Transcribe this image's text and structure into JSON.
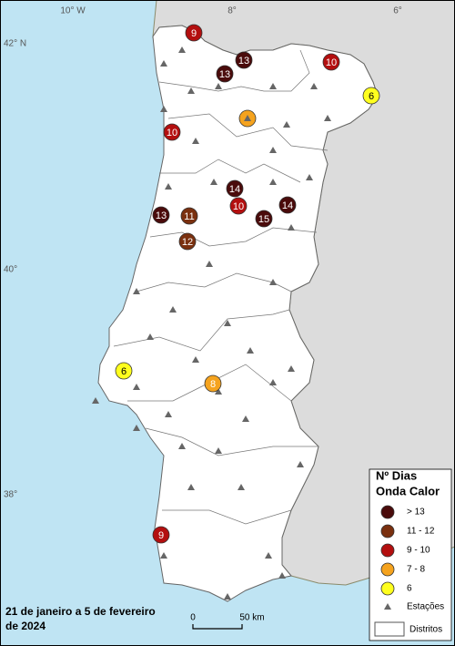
{
  "graticule": {
    "lon": [
      "10° W",
      "8°",
      "6°"
    ],
    "lat": [
      "42° N",
      "40°",
      "38°"
    ]
  },
  "markers": [
    {
      "value": 9,
      "color": "#b30f0f",
      "label_color": "#ffffff"
    },
    {
      "value": 13,
      "color": "#4a0b0b",
      "label_color": "#ffffff"
    },
    {
      "value": 13,
      "color": "#4a0b0b",
      "label_color": "#ffffff"
    },
    {
      "value": 10,
      "color": "#b30f0f",
      "label_color": "#ffffff"
    },
    {
      "value": 6,
      "color": "#ffff1e",
      "label_color": "#000000"
    },
    {
      "color": "#f5a31e"
    },
    {
      "value": 10,
      "color": "#b30f0f",
      "label_color": "#ffffff"
    },
    {
      "value": 14,
      "color": "#4a0b0b",
      "label_color": "#ffffff"
    },
    {
      "value": 10,
      "color": "#b30f0f",
      "label_color": "#ffffff"
    },
    {
      "value": 14,
      "color": "#4a0b0b",
      "label_color": "#ffffff"
    },
    {
      "value": 13,
      "color": "#4a0b0b",
      "label_color": "#ffffff"
    },
    {
      "value": 11,
      "color": "#7a300f",
      "label_color": "#ffffff"
    },
    {
      "value": 15,
      "color": "#4a0b0b",
      "label_color": "#ffffff"
    },
    {
      "value": 12,
      "color": "#7a300f",
      "label_color": "#ffffff"
    },
    {
      "value": 6,
      "color": "#ffff1e",
      "label_color": "#000000"
    },
    {
      "value": 8,
      "color": "#f5a31e",
      "label_color": "#ffffff"
    },
    {
      "value": 9,
      "color": "#b30f0f",
      "label_color": "#ffffff"
    }
  ],
  "legend": {
    "title": [
      "Nº Dias",
      "Onda Calor"
    ],
    "items": [
      {
        "label": "> 13",
        "color": "#4a0b0b"
      },
      {
        "label": "11 - 12",
        "color": "#7a300f"
      },
      {
        "label": "9 - 10",
        "color": "#b30f0f"
      },
      {
        "label": "7 - 8",
        "color": "#f5a31e"
      },
      {
        "label": "6",
        "color": "#ffff1e"
      }
    ],
    "stations": "Estações",
    "districts": "Distritos"
  },
  "caption": [
    "21 de janeiro a 5 de fevereiro",
    "de 2024"
  ],
  "scale_bar": [
    "0",
    "50 km"
  ]
}
